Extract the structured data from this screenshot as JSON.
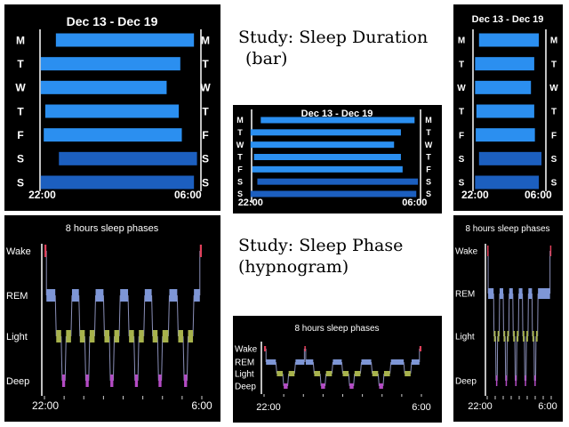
{
  "captions": {
    "duration_title": "Study: Sleep Duration",
    "duration_sub": "(bar)",
    "phase_title": "Study: Sleep Phase",
    "phase_sub": "(hypnogram)"
  },
  "colors": {
    "background": "#000000",
    "bar_light": "#2b8ff0",
    "bar_dark": "#1c5fbf",
    "wake": "#e0405a",
    "rem": "#7e96d6",
    "light": "#a7b24c",
    "deep": "#b44bc4",
    "text": "#ffffff"
  },
  "duration_chart": {
    "title": "Dec 13 - Dec 19",
    "days": [
      "M",
      "T",
      "W",
      "T",
      "F",
      "S",
      "S"
    ],
    "start_labels": [
      "22:00"
    ],
    "end_labels": [
      "06:00"
    ]
  },
  "phase_chart": {
    "title": "8 hours sleep phases",
    "levels": [
      "Wake",
      "REM",
      "Light",
      "Deep"
    ],
    "start_label": "22:00",
    "end_label": "6:00"
  },
  "chart_data": [
    {
      "type": "bar",
      "variant": "large",
      "title": "Dec 13 - Dec 19",
      "categories": [
        "M",
        "T",
        "W",
        "T",
        "F",
        "S",
        "S"
      ],
      "x_tick_labels": [
        "22:00",
        "06:00"
      ],
      "xlim": [
        "21:00",
        "06:40"
      ],
      "bars": [
        {
          "start": "22:45",
          "end": "06:20"
        },
        {
          "start": "21:55",
          "end": "05:35"
        },
        {
          "start": "21:55",
          "end": "04:50"
        },
        {
          "start": "22:10",
          "end": "05:30"
        },
        {
          "start": "22:05",
          "end": "05:40"
        },
        {
          "start": "22:55",
          "end": "06:30"
        },
        {
          "start": "21:55",
          "end": "06:20"
        }
      ],
      "highlighted_days": [
        5,
        6
      ]
    },
    {
      "type": "bar",
      "variant": "wide",
      "title": "Dec 13 - Dec 19",
      "categories": [
        "M",
        "T",
        "W",
        "T",
        "F",
        "S",
        "S"
      ],
      "x_tick_labels": [
        "22:00",
        "06:00"
      ],
      "xlim": [
        "21:45",
        "06:20"
      ],
      "bars": [
        {
          "start": "22:30",
          "end": "06:00"
        },
        {
          "start": "22:00",
          "end": "05:20"
        },
        {
          "start": "22:00",
          "end": "05:00"
        },
        {
          "start": "22:10",
          "end": "05:20"
        },
        {
          "start": "22:05",
          "end": "05:25"
        },
        {
          "start": "22:20",
          "end": "06:10"
        },
        {
          "start": "22:00",
          "end": "06:05"
        }
      ],
      "highlighted_days": [
        5,
        6
      ]
    },
    {
      "type": "bar",
      "variant": "narrow",
      "title": "Dec 13 - Dec 19",
      "categories": [
        "M",
        "T",
        "W",
        "T",
        "F",
        "S",
        "S"
      ],
      "x_tick_labels": [
        "22:00",
        "06:00"
      ],
      "xlim": [
        "20:50",
        "06:45"
      ],
      "bars": [
        {
          "start": "22:30",
          "end": "06:05"
        },
        {
          "start": "22:00",
          "end": "05:30"
        },
        {
          "start": "22:00",
          "end": "05:05"
        },
        {
          "start": "22:10",
          "end": "05:30"
        },
        {
          "start": "22:05",
          "end": "05:35"
        },
        {
          "start": "22:30",
          "end": "06:25"
        },
        {
          "start": "22:00",
          "end": "06:05"
        }
      ],
      "highlighted_days": [
        5,
        6
      ]
    },
    {
      "type": "line",
      "variant": "large",
      "title": "8 hours sleep phases",
      "y_categories": [
        "Wake",
        "REM",
        "Light",
        "Deep"
      ],
      "x_tick_labels": [
        "22:00",
        "6:00"
      ],
      "xlim": [
        0,
        8
      ],
      "segments": [
        {
          "stage": "Wake",
          "start": 0.0,
          "end": 0.1
        },
        {
          "stage": "REM",
          "start": 0.1,
          "end": 0.55
        },
        {
          "stage": "Light",
          "start": 0.6,
          "end": 0.85
        },
        {
          "stage": "Deep",
          "start": 0.9,
          "end": 1.05
        },
        {
          "stage": "Light",
          "start": 1.1,
          "end": 1.35
        },
        {
          "stage": "REM",
          "start": 1.4,
          "end": 1.75
        },
        {
          "stage": "Light",
          "start": 1.8,
          "end": 2.05
        },
        {
          "stage": "Deep",
          "start": 2.1,
          "end": 2.25
        },
        {
          "stage": "Light",
          "start": 2.3,
          "end": 2.55
        },
        {
          "stage": "REM",
          "start": 2.6,
          "end": 3.0
        },
        {
          "stage": "Light",
          "start": 3.05,
          "end": 3.3
        },
        {
          "stage": "Deep",
          "start": 3.35,
          "end": 3.5
        },
        {
          "stage": "Light",
          "start": 3.55,
          "end": 3.8
        },
        {
          "stage": "REM",
          "start": 3.85,
          "end": 4.25
        },
        {
          "stage": "Light",
          "start": 4.3,
          "end": 4.55
        },
        {
          "stage": "Deep",
          "start": 4.6,
          "end": 4.75
        },
        {
          "stage": "Light",
          "start": 4.8,
          "end": 5.05
        },
        {
          "stage": "REM",
          "start": 5.1,
          "end": 5.45
        },
        {
          "stage": "Light",
          "start": 5.5,
          "end": 5.75
        },
        {
          "stage": "Deep",
          "start": 5.8,
          "end": 5.95
        },
        {
          "stage": "Light",
          "start": 6.0,
          "end": 6.3
        },
        {
          "stage": "REM",
          "start": 6.35,
          "end": 6.75
        },
        {
          "stage": "Light",
          "start": 6.8,
          "end": 7.05
        },
        {
          "stage": "Deep",
          "start": 7.1,
          "end": 7.25
        },
        {
          "stage": "Light",
          "start": 7.3,
          "end": 7.55
        },
        {
          "stage": "REM",
          "start": 7.6,
          "end": 7.9
        },
        {
          "stage": "Wake",
          "start": 7.9,
          "end": 8.0
        }
      ]
    },
    {
      "type": "line",
      "variant": "wide",
      "title": "8 hours sleep phases",
      "y_categories": [
        "Wake",
        "REM",
        "Light",
        "Deep"
      ],
      "x_tick_labels": [
        "22:00",
        "6:00"
      ],
      "xlim": [
        0,
        8
      ],
      "segments": [
        {
          "stage": "Wake",
          "start": 0.0,
          "end": 0.1
        },
        {
          "stage": "REM",
          "start": 0.1,
          "end": 0.6
        },
        {
          "stage": "Light",
          "start": 0.65,
          "end": 0.95
        },
        {
          "stage": "Deep",
          "start": 1.0,
          "end": 1.2
        },
        {
          "stage": "Light",
          "start": 1.25,
          "end": 1.55
        },
        {
          "stage": "REM",
          "start": 1.6,
          "end": 2.05
        },
        {
          "stage": "Wake",
          "start": 2.05,
          "end": 2.12
        },
        {
          "stage": "REM",
          "start": 2.12,
          "end": 2.5
        },
        {
          "stage": "Light",
          "start": 2.55,
          "end": 2.85
        },
        {
          "stage": "Deep",
          "start": 2.9,
          "end": 3.1
        },
        {
          "stage": "Light",
          "start": 3.15,
          "end": 3.45
        },
        {
          "stage": "REM",
          "start": 3.5,
          "end": 3.95
        },
        {
          "stage": "Light",
          "start": 4.0,
          "end": 4.3
        },
        {
          "stage": "Deep",
          "start": 4.35,
          "end": 4.55
        },
        {
          "stage": "Light",
          "start": 4.6,
          "end": 4.9
        },
        {
          "stage": "REM",
          "start": 4.95,
          "end": 5.45
        },
        {
          "stage": "Light",
          "start": 5.5,
          "end": 5.8
        },
        {
          "stage": "Deep",
          "start": 5.85,
          "end": 6.05
        },
        {
          "stage": "Light",
          "start": 6.1,
          "end": 6.4
        },
        {
          "stage": "REM",
          "start": 6.45,
          "end": 7.1
        },
        {
          "stage": "Light",
          "start": 7.15,
          "end": 7.45
        },
        {
          "stage": "REM",
          "start": 7.5,
          "end": 7.9
        },
        {
          "stage": "Wake",
          "start": 7.9,
          "end": 8.0
        }
      ]
    },
    {
      "type": "line",
      "variant": "narrow",
      "title": "8 hours sleep phases",
      "y_categories": [
        "Wake",
        "REM",
        "Light",
        "Deep"
      ],
      "x_tick_labels": [
        "22:00",
        "6:00"
      ],
      "xlim": [
        0,
        8
      ],
      "segments": [
        {
          "stage": "Wake",
          "start": 0.0,
          "end": 0.12
        },
        {
          "stage": "REM",
          "start": 0.12,
          "end": 0.8
        },
        {
          "stage": "Light",
          "start": 0.85,
          "end": 1.05
        },
        {
          "stage": "Deep",
          "start": 1.1,
          "end": 1.25
        },
        {
          "stage": "Light",
          "start": 1.3,
          "end": 1.5
        },
        {
          "stage": "REM",
          "start": 1.55,
          "end": 2.0
        },
        {
          "stage": "Light",
          "start": 2.05,
          "end": 2.25
        },
        {
          "stage": "Deep",
          "start": 2.3,
          "end": 2.45
        },
        {
          "stage": "Light",
          "start": 2.5,
          "end": 2.7
        },
        {
          "stage": "REM",
          "start": 2.75,
          "end": 3.2
        },
        {
          "stage": "Light",
          "start": 3.25,
          "end": 3.45
        },
        {
          "stage": "Deep",
          "start": 3.5,
          "end": 3.65
        },
        {
          "stage": "Light",
          "start": 3.7,
          "end": 3.9
        },
        {
          "stage": "REM",
          "start": 3.95,
          "end": 4.4
        },
        {
          "stage": "Light",
          "start": 4.45,
          "end": 4.65
        },
        {
          "stage": "Deep",
          "start": 4.7,
          "end": 4.85
        },
        {
          "stage": "Light",
          "start": 4.9,
          "end": 5.1
        },
        {
          "stage": "REM",
          "start": 5.15,
          "end": 5.6
        },
        {
          "stage": "Light",
          "start": 5.65,
          "end": 5.85
        },
        {
          "stage": "Deep",
          "start": 5.9,
          "end": 6.05
        },
        {
          "stage": "Light",
          "start": 6.1,
          "end": 6.3
        },
        {
          "stage": "REM",
          "start": 6.35,
          "end": 7.85
        },
        {
          "stage": "Wake",
          "start": 7.85,
          "end": 8.0
        }
      ]
    }
  ]
}
